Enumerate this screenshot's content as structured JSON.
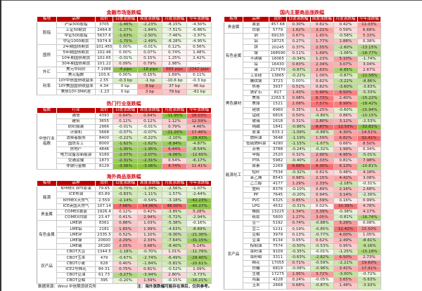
{
  "headers_a": [
    "板块",
    "品种",
    "现价",
    "日度涨跌幅",
    "周度涨跌幅",
    "月度涨跌幅",
    "今年涨跌幅"
  ],
  "headers_b": [
    "指数",
    "行业",
    "现价",
    "日度涨跌幅",
    "周度涨跌幅",
    "月度涨跌幅",
    "今年涨跌幅"
  ],
  "colors": {
    "header": "#c00000",
    "title": "#d0101a",
    "up": "#f8696b",
    "down": "#8cc63f"
  },
  "financial": {
    "title": "金融市场涨跌幅",
    "groups": [
      {
        "name": "股指",
        "rows": [
          [
            "沪深300股指",
            "3705",
            "-1.46%",
            "-2.23%",
            "-8.15%",
            "-4.50%"
          ],
          [
            "上证50期货",
            "2464.8",
            "-1.27%",
            "-1.84%",
            "-7.51%",
            "-6.86%"
          ],
          [
            "中证500股指",
            "5637.6",
            "-1.63%",
            "-2.50%",
            "-7.46%",
            "-3.97%"
          ],
          [
            "中证1000期货",
            "5974.8",
            "-1.75%",
            "-2.49%",
            "-8.28%",
            "-4.95%"
          ]
        ]
      },
      {
        "name": "国债",
        "rows": [
          [
            "2年期国债期货",
            "101.455",
            "0.00%",
            "-0.01%",
            "0.12%",
            "0.56%"
          ],
          [
            "5年期国债期货",
            "102.46",
            "0.00%",
            "0.07%",
            "0.74%",
            "1.48%"
          ],
          [
            "10年期国债期货",
            "102.65",
            "-0.01%",
            "0.15%",
            "1.25%",
            "2.42%"
          ],
          [
            "30年期国债期货",
            "101.22",
            "0.09%",
            "0.79%",
            "2.98%",
            "-"
          ]
        ]
      },
      {
        "name": "外汇",
        "rows": [
          [
            "美元中间价",
            "7.1988",
            "-4 pips",
            "-18 pips",
            "683 pips",
            "2342 pips"
          ],
          [
            "美元指数",
            "103.6",
            "0.00%",
            "0.15%",
            "1.69%",
            "0.11%"
          ]
        ]
      },
      {
        "name": "利率",
        "rows": [
          [
            "10Y中债国债收益率",
            "2.55",
            "-0.3 bp",
            "-1 bp",
            "-10.6 bp",
            "-0.3 bp"
          ],
          [
            "10Y美国国债收益率",
            "4.34",
            "0 bp",
            "8 bp",
            "37 bp",
            "46 bp"
          ],
          [
            "美债10Y-3M利差",
            "-1.23",
            "0 bp",
            "3 bp",
            "79 bp",
            "-61 bp"
          ]
        ]
      }
    ]
  },
  "industry": {
    "title": "热门行业涨跌幅",
    "groups": [
      {
        "name": "中信行业指数",
        "rows": [
          [
            "通信",
            "4393",
            "0.64%",
            "0.64%",
            "-11.95%",
            "28.03%"
          ],
          [
            "建筑",
            "3655",
            "0.12%",
            "0.12%",
            "1.12%",
            "12.59%"
          ],
          [
            "纺织服装",
            "2966",
            "-0.01%",
            "-0.01%",
            "0.79%",
            "4.46%"
          ],
          [
            "计算机",
            "5668",
            "-0.07%",
            "-0.07%",
            "-11.20%",
            "17.46%"
          ],
          [
            "消费者服务",
            "8400",
            "-0.22%",
            "-0.22%",
            "-2.10%",
            "-29.43%"
          ],
          [
            "国防军工",
            "8000",
            "-1.62%",
            "-1.62%",
            "-8.94%",
            "-4.87%"
          ],
          [
            "房地产",
            "4846",
            "-1.95%",
            "-1.95%",
            "6.44%",
            "-8.54%"
          ],
          [
            "电力设备及新能源",
            "9189",
            "-2.07%",
            "-2.07%",
            "-9.06%",
            "-12.60%"
          ],
          [
            "交通运输",
            "1873",
            "-2.31%",
            "-2.31%",
            "0.54%",
            "-6.17%"
          ],
          [
            "非银行金融",
            "8129",
            "-3.06%",
            "-3.06%",
            "8.74%",
            "11.41%"
          ]
        ]
      }
    ]
  },
  "overseas": {
    "title": "海外商品涨跌幅",
    "groups": [
      {
        "name": "能源",
        "rows": [
          [
            "NYMEX WTI原油",
            "79.65",
            "-0.70%",
            "-1.34%",
            "-2.56%",
            "-1.07%"
          ],
          [
            "ICE布油",
            "83.89",
            "-0.83%",
            "-1.11%",
            "-1.57%",
            "-2.44%"
          ],
          [
            "NYMEX天然气",
            "2.559",
            "-2.14%",
            "-0.54%",
            "-3.18%",
            "-42.23%"
          ],
          [
            "ICE英国天然气",
            "107.14",
            "7.68%",
            "14.96%",
            "48.00%",
            "-40.27%"
          ]
        ]
      },
      {
        "name": "贵金属",
        "rows": [
          [
            "COMEX黄金",
            "1926.4",
            "0.12%",
            "0.42%",
            "-3.85%",
            "5.28%"
          ],
          [
            "COMEX白银",
            "23.47",
            "0.41%",
            "2.94%",
            "-5.72%",
            "-2.94%"
          ]
        ]
      },
      {
        "name": "有色金属",
        "rows": [
          [
            "LME铜",
            "8361",
            "0.88%",
            "1.03%",
            "-5.38%",
            "-0.16%"
          ],
          [
            "LME铝",
            "2181",
            "1.65%",
            "1.99%",
            "-4.63%",
            "-8.69%"
          ],
          [
            "LME锌",
            "2335.5",
            "0.52%",
            "1.10%",
            "-9.30%",
            "-21.30%"
          ],
          [
            "LME镍",
            "20600",
            "2.29%",
            "2.33%",
            "-7.64%",
            "-31.15%"
          ],
          [
            "LME锡",
            "26180",
            "2.05%",
            "3.68%",
            "-8.40%",
            "5.14%"
          ]
        ]
      },
      {
        "name": "农产品",
        "rows": [
          [
            "CBOT大豆",
            "1344.5",
            "-1.18%",
            "-0.70%",
            "1.01%",
            "-11.79%"
          ],
          [
            "CBOT玉米",
            "479",
            "-0.67%",
            "-2.74%",
            "-6.49%",
            "-29.40%"
          ],
          [
            "CBOT小麦",
            "628",
            "0.40%",
            "-1.84%",
            "-5.81%",
            "-20.61%"
          ],
          [
            "ICE2号棉花",
            "84.31",
            "0.75%",
            "0.81%",
            "-0.52%",
            "1.09%"
          ],
          [
            "CBOT豆油",
            "61.73",
            "-3.27%",
            "-3.94%",
            "2.80%",
            "-3.73%"
          ],
          [
            "CBOT豆粕",
            "395",
            "-0.20%",
            "1.59%",
            "-0.15%",
            "-16.21%"
          ]
        ]
      }
    ]
  },
  "domestic": {
    "title": "国内主要商品涨跌幅",
    "groups": [
      {
        "name": "贵金属",
        "rows": [
          [
            "黄金",
            "457.68",
            "0.30%",
            "0.61%",
            "0.42%",
            "11.03%"
          ],
          [
            "白银",
            "5779",
            "1.62%",
            "3.21%",
            "0.59%",
            "6.68%"
          ]
        ]
      },
      {
        "name": "有色金属",
        "rows": [
          [
            "铜",
            "69130",
            "0.67%",
            "1.65%",
            "-0.58%",
            "5.33%"
          ],
          [
            "铝",
            "18725",
            "0.27%",
            "1.77%",
            "1.88%",
            "0.38%"
          ],
          [
            "锌",
            "20245",
            "0.37%",
            "2.55%",
            "-2.60%",
            "-13.15%"
          ],
          [
            "镍",
            "168590",
            "0.11%",
            "1.69%",
            "-1.06%",
            "-18.77%"
          ],
          [
            "不锈钢",
            "16065",
            "-0.34%",
            "1.23%",
            "5.10%",
            "-1.74%"
          ],
          [
            "铅",
            "16430",
            "0.83%",
            "2.34%",
            "3.07%",
            "3.04%"
          ],
          [
            "锡",
            "217370",
            "-0.87%",
            "2.63%",
            "-6.85%",
            "2.67%"
          ],
          [
            "工业硅",
            "13665",
            "-0.22%",
            "1.00%",
            "-0.87%",
            "-22.58%"
          ]
        ]
      },
      {
        "name": "黑色建材",
        "rows": [
          [
            "螺纹钢",
            "3723",
            "0.00%",
            "0.62%",
            "-3.22%",
            "-8.86%"
          ],
          [
            "热卷",
            "3937",
            "0.51%",
            "0.82%",
            "-3.60%",
            "-3.83%"
          ],
          [
            "铁矿石",
            "817",
            "1.43%",
            "5.90%",
            "8.50%",
            "-5.33%"
          ],
          [
            "焦炭",
            "2263.5",
            "0.98%",
            "6.73%",
            "2.40%",
            "-15.22%"
          ],
          [
            "焦煤",
            "1521",
            "2.08%",
            "7.57%",
            "8.99%",
            "-18.42%"
          ],
          [
            "硅铁",
            "6960",
            "0.35%",
            "1.25%",
            "-0.60%",
            "-15.94%"
          ],
          [
            "锰硅",
            "6816",
            "0.50%",
            "-0.80%",
            "0.86%",
            "-10.15%"
          ],
          [
            "玻璃",
            "1618",
            "0.31%",
            "2.80%",
            "3.12%",
            "-2.53%"
          ],
          [
            "纯碱",
            "1841",
            "-0.86%",
            "8.87%",
            "12.53%",
            "-32.81%"
          ]
        ]
      },
      {
        "name": "能源化工",
        "rows": [
          [
            "原油",
            "633.1",
            "-1.09%",
            "-0.88%",
            "4.30%",
            "14.51%"
          ],
          [
            "燃料油",
            "3648",
            "-1.19%",
            "1.59%",
            "6.82%",
            "32.41%"
          ],
          [
            "低硫燃料油",
            "4290",
            "-1.15%",
            "-1.67%",
            "0.66%",
            "8.50%"
          ],
          [
            "沥青",
            "3788",
            "-0.24%",
            "-0.32%",
            "1.99%",
            "0.34%"
          ],
          [
            "甲醇",
            "2520",
            "0.32%",
            "2.90%",
            "4.95%",
            "-5.01%"
          ],
          [
            "PTA",
            "5982",
            "-0.40%",
            "2.33%",
            "0.81%",
            "7.98%"
          ],
          [
            "尿素",
            "2269",
            "6.88%",
            "8.30%",
            "6.13%",
            "-10.81%"
          ],
          [
            "短纤",
            "7534",
            "-0.32%",
            "0.61%",
            "0.48%",
            "4.18%"
          ],
          [
            "苯乙烯",
            "8543",
            "0.98%",
            "2.15%",
            "4.42%",
            "3.08%"
          ],
          [
            "乙二醇",
            "4177",
            "1.29%",
            "2.33%",
            "-2.18%",
            "-0.31%"
          ],
          [
            "塑料",
            "8376",
            "-0.10%",
            "0.89%",
            "2.16%",
            "2.68%"
          ],
          [
            "PP",
            "7645",
            "-0.20%",
            "0.94%",
            "3.14%",
            "-2.30%"
          ],
          [
            "PVC",
            "6325",
            "0.85%",
            "1.59%",
            "0.16%",
            "0.99%"
          ],
          [
            "LPG",
            "4532",
            "-0.31%",
            "0.02%",
            "10.39%",
            "4.78%"
          ],
          [
            "橡胶",
            "13225",
            "1.34%",
            "3.39%",
            "-0.38%",
            "4.17%"
          ],
          [
            "纸浆",
            "5600",
            "1.27%",
            "3.05%",
            "-0.81%",
            "-16.74%"
          ]
        ]
      },
      {
        "name": "农产品",
        "rows": [
          [
            "豆一",
            "5192",
            "0.74%",
            "-0.88%",
            "5.29%",
            "0.08%"
          ],
          [
            "豆二",
            "5231",
            "0.19%",
            "-0.85%",
            "11.42%",
            "15.50%"
          ],
          [
            "豆粕",
            "3979",
            "0.13%",
            "-0.77%",
            "4.00%",
            "1.05%"
          ],
          [
            "豆油",
            "8134",
            "0.05%",
            "0.62%",
            "2.49%",
            "-8.61%"
          ],
          [
            "棕榈油",
            "7574",
            "-0.50%",
            "-0.53%",
            "0.95%",
            "-9.16%"
          ],
          [
            "菜籽油",
            "9109",
            "-0.35%",
            "-0.01%",
            "-1.25%",
            "-15.18%"
          ],
          [
            "菜籽粕",
            "3311",
            "-0.63%",
            "-2.82%",
            "6.50%",
            "2.73%"
          ],
          [
            "棉花",
            "17055",
            "0.71%",
            "-0.59%",
            "-2.21%",
            "19.60%"
          ],
          [
            "白糖",
            "6819",
            "-0.08%",
            "-0.96%",
            "3.41%",
            "17.91%"
          ],
          [
            "生猪",
            "17275",
            "1.95%",
            "3.72%",
            "-3.00%",
            "-0.72%"
          ],
          [
            "鸡蛋",
            "4228",
            "0.24%",
            "-0.05%",
            "3.65%",
            "-5.63%"
          ],
          [
            "玉米",
            "2668",
            "0.68%",
            "-0.87%",
            "1.48%",
            "-3.93%"
          ]
        ]
      }
    ]
  },
  "footer": {
    "source": "数据来源：Wind  中信期货研究所",
    "note": "注：海外涨跌幅可能存在滞后，仅供参考。"
  }
}
